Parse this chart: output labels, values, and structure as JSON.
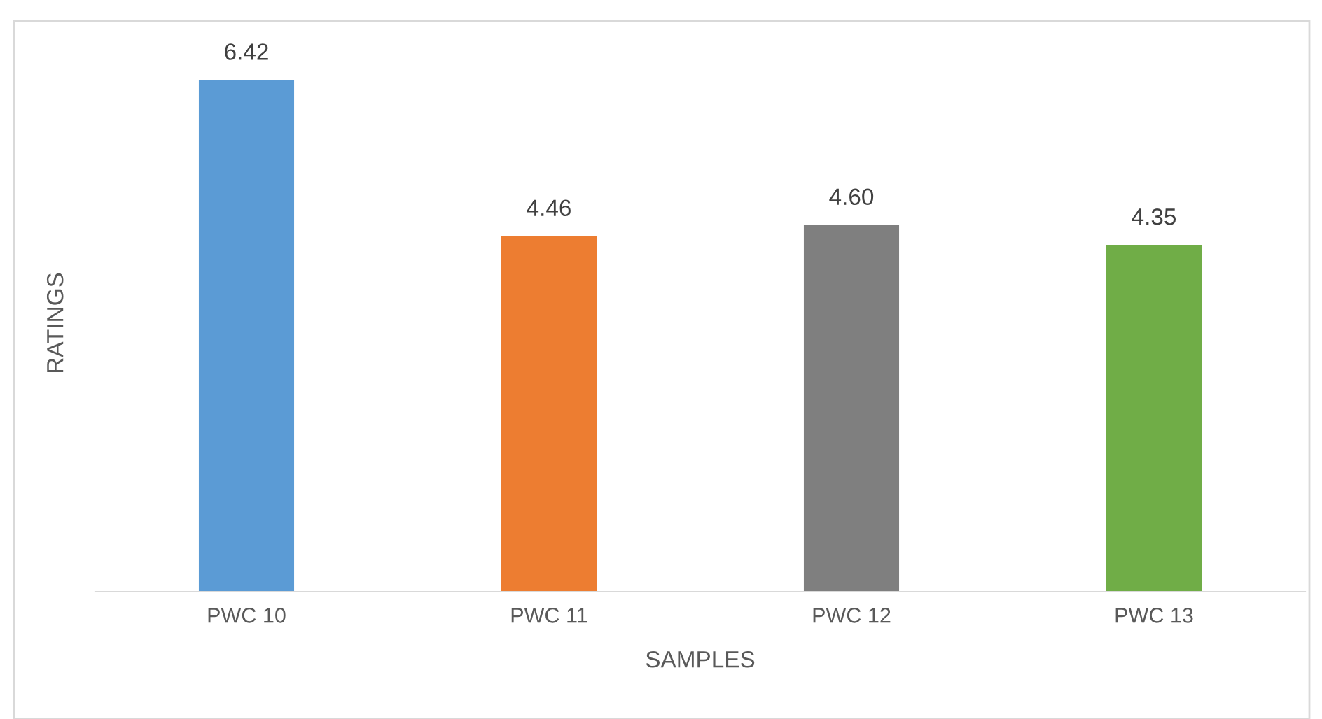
{
  "chart_data": {
    "type": "bar",
    "xlabel": "SAMPLES",
    "ylabel": "RATINGS",
    "categories": [
      "PWC 10",
      "PWC 11",
      "PWC 12",
      "PWC 13"
    ],
    "values": [
      6.42,
      4.46,
      4.6,
      4.35
    ],
    "colors": [
      "#5b9bd5",
      "#ed7d31",
      "#7f7f7f",
      "#70ad47"
    ],
    "value_labels": [
      "6.42",
      "4.46",
      "4.60",
      "4.35"
    ],
    "tick_labels": "x",
    "grid": false,
    "legend": false
  }
}
